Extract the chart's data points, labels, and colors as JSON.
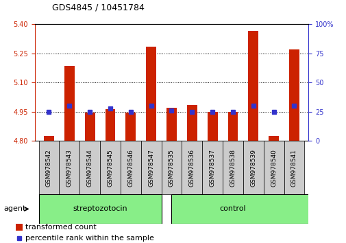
{
  "title": "GDS4845 / 10451784",
  "samples": [
    "GSM978542",
    "GSM978543",
    "GSM978544",
    "GSM978545",
    "GSM978546",
    "GSM978547",
    "GSM978535",
    "GSM978536",
    "GSM978537",
    "GSM978538",
    "GSM978539",
    "GSM978540",
    "GSM978541"
  ],
  "groups": [
    "streptozotocin",
    "streptozotocin",
    "streptozotocin",
    "streptozotocin",
    "streptozotocin",
    "streptozotocin",
    "control",
    "control",
    "control",
    "control",
    "control",
    "control",
    "control"
  ],
  "bar_values": [
    4.825,
    5.185,
    4.945,
    4.965,
    4.945,
    5.285,
    4.97,
    4.985,
    4.95,
    4.95,
    5.365,
    4.825,
    5.27
  ],
  "blue_values": [
    25,
    30,
    25,
    28,
    25,
    30,
    26,
    25,
    25,
    25,
    30,
    25,
    30
  ],
  "ymin": 4.8,
  "ymax": 5.4,
  "yticks": [
    4.8,
    4.95,
    5.1,
    5.25,
    5.4
  ],
  "y2ticks": [
    0,
    25,
    50,
    75,
    100
  ],
  "bar_color": "#cc2200",
  "blue_color": "#3333cc",
  "group_color": "#88ee88",
  "label_bg_color": "#cccccc",
  "bar_width": 0.5,
  "title_fontsize": 9,
  "tick_fontsize": 7,
  "group_fontsize": 8,
  "legend_fontsize": 8
}
